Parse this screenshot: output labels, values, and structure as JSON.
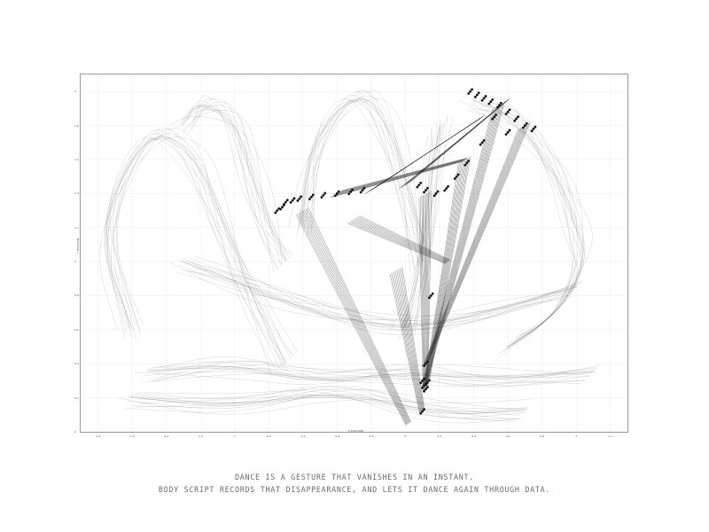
{
  "chart_data": {
    "type": "line",
    "title": "",
    "xlabel": "X POSITION",
    "ylabel": "Y POSITION",
    "xlim": [
      -1.9,
      1.3
    ],
    "ylim": [
      0,
      2.1
    ],
    "x_ticks": [
      -1.8,
      -1.6,
      -1.4,
      -1.2,
      -1,
      -0.8,
      -0.6,
      -0.4,
      -0.2,
      0,
      0.2,
      0.4,
      0.6,
      0.8,
      1,
      1.2
    ],
    "y_ticks": [
      0,
      0.2,
      0.4,
      0.6,
      0.8,
      1,
      1.2,
      1.4,
      1.6,
      1.8,
      2
    ],
    "grid": true,
    "legend": "none",
    "stroke_color": "#1a1a1a",
    "series": [
      {
        "values": [
          [
            -1.6,
            0.6
          ],
          [
            -1.8,
            1.2
          ],
          [
            -1.5,
            1.8
          ],
          [
            -1.25,
            1.65
          ],
          [
            -1.1,
            1.3
          ],
          [
            -0.9,
            0.8
          ],
          [
            -0.7,
            0.4
          ]
        ]
      },
      {
        "values": [
          [
            -1.3,
            1.8
          ],
          [
            -1.2,
            1.95
          ],
          [
            -1.0,
            1.85
          ],
          [
            -0.9,
            1.5
          ],
          [
            -0.8,
            1.2
          ],
          [
            -0.7,
            1.0
          ]
        ]
      },
      {
        "values": [
          [
            -0.6,
            1.2
          ],
          [
            -0.55,
            1.7
          ],
          [
            -0.3,
            2.0
          ],
          [
            -0.15,
            1.9
          ],
          [
            0.0,
            1.5
          ],
          [
            0.1,
            1.0
          ]
        ]
      },
      {
        "values": [
          [
            0.4,
            1.95
          ],
          [
            0.65,
            1.85
          ],
          [
            0.9,
            1.5
          ],
          [
            1.0,
            1.2
          ],
          [
            1.05,
            1.0
          ],
          [
            0.9,
            0.7
          ],
          [
            0.6,
            0.5
          ]
        ]
      },
      {
        "values": [
          [
            -1.5,
            0.35
          ],
          [
            -1.0,
            0.4
          ],
          [
            -0.5,
            0.3
          ],
          [
            0.0,
            0.35
          ],
          [
            0.5,
            0.3
          ],
          [
            1.1,
            0.35
          ]
        ]
      },
      {
        "values": [
          [
            -1.6,
            0.2
          ],
          [
            -1.0,
            0.15
          ],
          [
            -0.4,
            0.25
          ],
          [
            0.2,
            0.1
          ],
          [
            0.7,
            0.12
          ]
        ]
      },
      {
        "values": [
          [
            -1.3,
            1.0
          ],
          [
            -0.9,
            0.85
          ],
          [
            -0.5,
            0.7
          ],
          [
            0.0,
            0.6
          ],
          [
            0.5,
            0.7
          ],
          [
            1.0,
            0.85
          ]
        ]
      },
      {
        "values": [
          [
            0.0,
            0.6
          ],
          [
            0.1,
            1.0
          ],
          [
            0.15,
            1.5
          ],
          [
            0.2,
            1.8
          ]
        ]
      }
    ],
    "marker_groups": [
      {
        "values": [
          [
            -0.75,
            1.3
          ],
          [
            -0.72,
            1.32
          ],
          [
            -0.7,
            1.35
          ],
          [
            -0.66,
            1.36
          ],
          [
            -0.62,
            1.37
          ],
          [
            -0.55,
            1.38
          ],
          [
            -0.48,
            1.39
          ],
          [
            -0.4,
            1.4
          ],
          [
            -0.32,
            1.41
          ],
          [
            -0.25,
            1.42
          ]
        ]
      },
      {
        "values": [
          [
            0.38,
            2.0
          ],
          [
            0.42,
            1.98
          ],
          [
            0.46,
            1.96
          ],
          [
            0.5,
            1.94
          ],
          [
            0.55,
            1.92
          ],
          [
            0.6,
            1.88
          ],
          [
            0.65,
            1.84
          ],
          [
            0.7,
            1.8
          ],
          [
            0.75,
            1.78
          ],
          [
            0.52,
            1.85
          ],
          [
            0.6,
            1.76
          ],
          [
            0.45,
            1.7
          ]
        ]
      },
      {
        "values": [
          [
            0.08,
            1.45
          ],
          [
            0.12,
            1.42
          ],
          [
            0.18,
            1.4
          ],
          [
            0.24,
            1.43
          ],
          [
            0.3,
            1.5
          ],
          [
            0.36,
            1.58
          ]
        ]
      },
      {
        "values": [
          [
            0.1,
            0.3
          ],
          [
            0.11,
            0.27
          ],
          [
            0.12,
            0.25
          ],
          [
            0.13,
            0.29
          ],
          [
            0.12,
            0.4
          ],
          [
            0.15,
            0.8
          ],
          [
            0.1,
            0.12
          ]
        ]
      }
    ],
    "rays": [
      {
        "from": [
          -0.6,
          1.3
        ],
        "to": [
          0.02,
          0.05
        ]
      },
      {
        "from": [
          -0.4,
          1.4
        ],
        "to": [
          0.35,
          1.6
        ]
      },
      {
        "from": [
          -0.2,
          1.42
        ],
        "to": [
          0.45,
          1.85
        ]
      },
      {
        "from": [
          0.0,
          1.45
        ],
        "to": [
          0.6,
          1.95
        ]
      },
      {
        "from": [
          0.12,
          1.4
        ],
        "to": [
          0.12,
          0.25
        ]
      },
      {
        "from": [
          0.35,
          1.6
        ],
        "to": [
          0.13,
          0.3
        ]
      },
      {
        "from": [
          0.55,
          1.92
        ],
        "to": [
          0.11,
          0.27
        ]
      },
      {
        "from": [
          0.7,
          1.8
        ],
        "to": [
          0.12,
          0.4
        ]
      },
      {
        "from": [
          -0.05,
          0.95
        ],
        "to": [
          0.1,
          0.12
        ]
      },
      {
        "from": [
          -0.3,
          1.25
        ],
        "to": [
          0.25,
          1.0
        ]
      }
    ]
  },
  "caption": {
    "line1": "DANCE IS A GESTURE THAT VANISHES IN AN INSTANT.",
    "line2": "BODY SCRIPT RECORDS THAT DISAPPEARANCE, AND LETS IT DANCE AGAIN THROUGH DATA."
  }
}
